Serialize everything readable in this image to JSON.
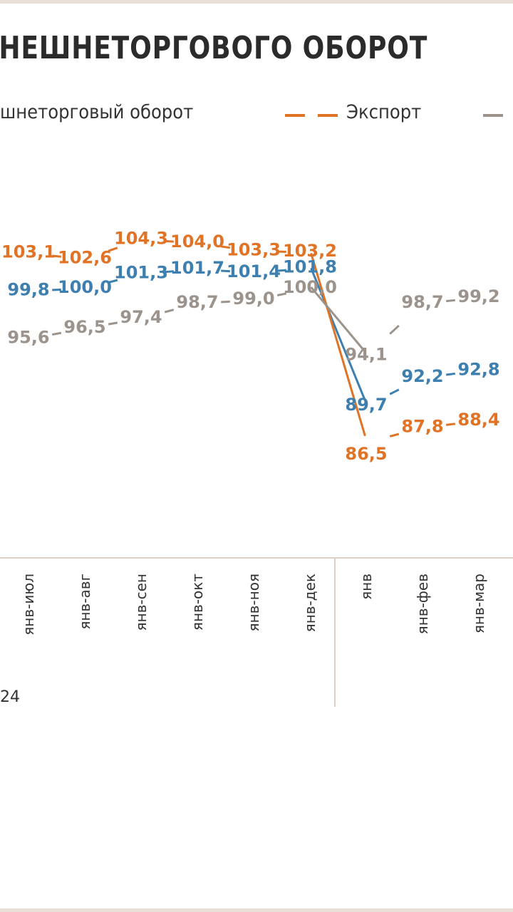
{
  "chart_data": {
    "type": "line",
    "title": "ВНЕШНЕТОРГОВОГО ОБОРОТ",
    "categories": [
      "янв-июл",
      "янв-авг",
      "янв-сен",
      "янв-окт",
      "янв-ноя",
      "янв-дек",
      "янв",
      "янв-фев",
      "янв-мар"
    ],
    "year_labels": [
      "24"
    ],
    "series": [
      {
        "name": "шнеторговый оборот",
        "color": "#3d7fae",
        "values": [
          99.8,
          100.0,
          101.3,
          101.7,
          101.4,
          101.8,
          89.7,
          92.2,
          92.8
        ],
        "labels": [
          "99,8",
          "100,0",
          "101,3",
          "101,7",
          "101,4",
          "101,8",
          "89,7",
          "92,2",
          "92,8"
        ]
      },
      {
        "name": "Экспорт",
        "color": "#e07325",
        "values": [
          103.1,
          102.6,
          104.3,
          104.0,
          103.3,
          103.2,
          86.5,
          87.8,
          88.4
        ],
        "labels": [
          "103,1",
          "102,6",
          "104,3",
          "104,0",
          "103,3",
          "103,2",
          "86,5",
          "87,8",
          "88,4"
        ]
      },
      {
        "name": "",
        "color": "#9b938c",
        "values": [
          95.6,
          96.5,
          97.4,
          98.7,
          99.0,
          100.0,
          94.1,
          98.7,
          99.2
        ],
        "labels": [
          "95,6",
          "96,5",
          "97,4",
          "98,7",
          "99,0",
          "100,0",
          "94,1",
          "98,7",
          "99,2"
        ]
      }
    ],
    "legend_position": "top",
    "grid": false
  }
}
